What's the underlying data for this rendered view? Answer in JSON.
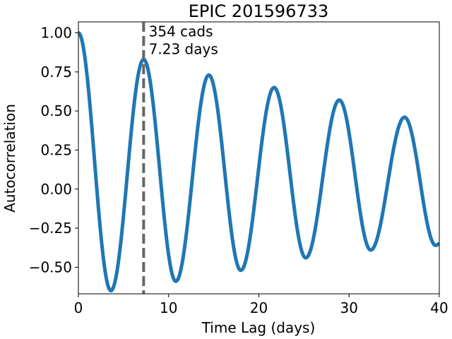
{
  "chart_data": {
    "type": "line",
    "title": "EPIC 201596733",
    "xlabel": "Time Lag (days)",
    "ylabel": "Autocorrelation",
    "xlim": [
      0,
      40
    ],
    "ylim": [
      -0.67,
      1.07
    ],
    "xticks": [
      0,
      10,
      20,
      30,
      40
    ],
    "xtick_labels": [
      "0",
      "10",
      "20",
      "30",
      "40"
    ],
    "yticks": [
      -0.5,
      -0.25,
      0.0,
      0.25,
      0.5,
      0.75,
      1.0
    ],
    "ytick_labels": [
      "−0.50",
      "−0.25",
      "0.00",
      "0.25",
      "0.50",
      "0.75",
      "1.00"
    ],
    "grid": false,
    "series": [
      {
        "color": "#1f77b4",
        "period_days": 7.23,
        "peaks": [
          {
            "x": 0.0,
            "y": 1.0
          },
          {
            "x": 7.23,
            "y": 0.83
          },
          {
            "x": 14.46,
            "y": 0.73
          },
          {
            "x": 21.69,
            "y": 0.65
          },
          {
            "x": 28.92,
            "y": 0.57
          },
          {
            "x": 36.15,
            "y": 0.46
          }
        ],
        "troughs": [
          {
            "x": 3.6,
            "y": -0.65
          },
          {
            "x": 10.8,
            "y": -0.59
          },
          {
            "x": 18.0,
            "y": -0.52
          },
          {
            "x": 25.2,
            "y": -0.44
          },
          {
            "x": 32.4,
            "y": -0.39
          },
          {
            "x": 39.6,
            "y": -0.36
          }
        ],
        "end": {
          "x": 40.0,
          "y": -0.35
        }
      }
    ],
    "marker_line": {
      "x": 7.23,
      "color": "#666666",
      "style": "dashed"
    },
    "annotation": {
      "line1": "354 cads",
      "line2": "7.23 days",
      "x": 7.8,
      "y": 1.0
    }
  }
}
